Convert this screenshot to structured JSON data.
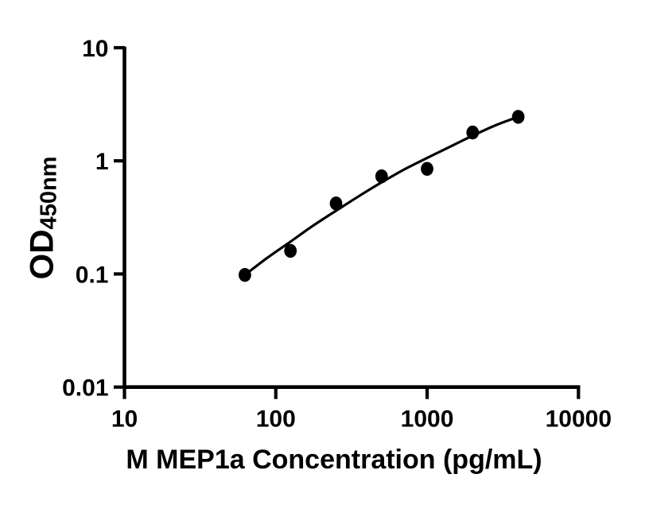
{
  "figure": {
    "background_color": "#ffffff",
    "ink_color": "#000000"
  },
  "chart_data": {
    "type": "scatter",
    "title": "",
    "xlabel": "M MEP1a Concentration (pg/mL)",
    "ylabel": "OD",
    "ylabel_subscript": "450nm",
    "x_scale": "log",
    "y_scale": "log",
    "xlim": [
      10,
      10000
    ],
    "ylim": [
      0.01,
      10
    ],
    "x_ticks": [
      10,
      100,
      1000,
      10000
    ],
    "x_tick_labels": [
      "10",
      "100",
      "1000",
      "10000"
    ],
    "y_ticks": [
      10,
      1,
      0.1,
      0.01
    ],
    "y_tick_labels": [
      "10",
      "1",
      "0.1",
      "0.01"
    ],
    "grid": false,
    "legend": null,
    "series": [
      {
        "name": "standard-points",
        "kind": "scatter",
        "marker": "filled-circle",
        "color": "#000000",
        "x": [
          62.5,
          125,
          250,
          500,
          1000,
          2000,
          4000
        ],
        "y": [
          0.098,
          0.16,
          0.42,
          0.73,
          0.85,
          1.78,
          2.45
        ]
      },
      {
        "name": "fit-curve",
        "kind": "line",
        "color": "#000000",
        "x": [
          62.5,
          88,
          125,
          177,
          250,
          354,
          500,
          707,
          1000,
          1414,
          2000,
          2828,
          4000
        ],
        "y": [
          0.098,
          0.139,
          0.193,
          0.268,
          0.362,
          0.487,
          0.645,
          0.84,
          1.06,
          1.33,
          1.67,
          2.06,
          2.45
        ]
      }
    ]
  }
}
